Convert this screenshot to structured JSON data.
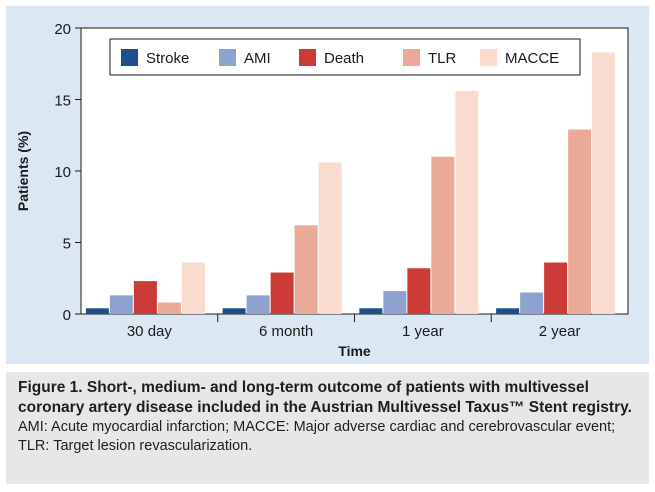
{
  "chart_data": {
    "type": "bar",
    "categories": [
      "30 day",
      "6 month",
      "1 year",
      "2 year"
    ],
    "series": [
      {
        "name": "Stroke",
        "color": "#1f4e8c",
        "values": [
          0.4,
          0.4,
          0.4,
          0.4
        ]
      },
      {
        "name": "AMI",
        "color": "#8da2cf",
        "values": [
          1.3,
          1.3,
          1.6,
          1.5
        ]
      },
      {
        "name": "Death",
        "color": "#cc3a35",
        "values": [
          2.3,
          2.9,
          3.2,
          3.6
        ]
      },
      {
        "name": "TLR",
        "color": "#e9ab98",
        "values": [
          0.8,
          6.2,
          11.0,
          12.9
        ]
      },
      {
        "name": "MACCE",
        "color": "#f9dccf",
        "values": [
          3.6,
          10.6,
          15.6,
          18.3
        ]
      }
    ],
    "xlabel": "Time",
    "ylabel": "Patients (%)",
    "ylim": [
      0,
      20
    ],
    "yticks": [
      0,
      5,
      10,
      15,
      20
    ],
    "legend_position": "top"
  },
  "caption": {
    "title": "Figure 1. Short-, medium- and long-term outcome of patients with multivessel coronary artery disease included in the Austrian Multivessel Taxus™ Stent registry.",
    "note": "AMI: Acute myocardial infarction; MACCE: Major adverse cardiac and cerebrovascular event; TLR: Target lesion revascularization."
  }
}
